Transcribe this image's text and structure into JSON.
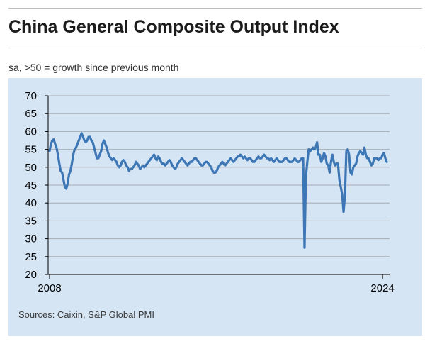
{
  "title": "China General Composite Output Index",
  "subtitle": "sa, >50 = growth since previous month",
  "source": "Sources: Caixin, S&P Global PMI",
  "colors": {
    "panel": "#d6e5f4",
    "line": "#3c76b5",
    "grid": "#a6acb3"
  },
  "chart_data": {
    "type": "line",
    "title": "China General Composite Output Index",
    "subtitle": "sa, >50 = growth since previous month",
    "xlabel": "",
    "ylabel": "",
    "x_tick_labels": [
      "2008",
      "2024"
    ],
    "ylim": [
      20,
      70
    ],
    "y_ticks": [
      20,
      25,
      30,
      35,
      40,
      45,
      50,
      55,
      60,
      65,
      70
    ],
    "grid": true,
    "x_start": "2008-01",
    "x_end": "2024-04",
    "series": [
      {
        "values": [
          54.5,
          56.5,
          57.5,
          57.8,
          56.5,
          55.5,
          53.5,
          51,
          49,
          48.5,
          46.5,
          44.5,
          44.0,
          45.5,
          48,
          49,
          51,
          53.5,
          55,
          55.5,
          56.5,
          57.5,
          58.5,
          59.5,
          58.5,
          57.5,
          57,
          57.5,
          58.5,
          58.5,
          57.5,
          57,
          55.5,
          54,
          52.5,
          52.5,
          53.5,
          54.5,
          56.5,
          57.5,
          56.5,
          55.5,
          54,
          53,
          52.5,
          52,
          52.5,
          52,
          51.5,
          50.5,
          50,
          50.5,
          51.5,
          52,
          51.5,
          50.5,
          50,
          49,
          49.5,
          49.5,
          50,
          50.5,
          51.5,
          51,
          50.5,
          49.5,
          50,
          50.5,
          50,
          50.5,
          51,
          51.5,
          52,
          52.5,
          53,
          53.5,
          52.5,
          52,
          53,
          52.5,
          51.5,
          51,
          51,
          50.5,
          51,
          51.5,
          52,
          51.5,
          50.5,
          50,
          49.5,
          50,
          51,
          51.5,
          52,
          52.5,
          52,
          51.5,
          51,
          50.5,
          51,
          51.5,
          51.5,
          52,
          52.5,
          52.5,
          52,
          51.5,
          51,
          50.5,
          50.5,
          51,
          51.5,
          51.5,
          51,
          50.5,
          50,
          49,
          48.5,
          48.5,
          49,
          50,
          50.5,
          51,
          51.5,
          51,
          50.5,
          51,
          51.5,
          52,
          52.5,
          52,
          51.5,
          52,
          52.5,
          53,
          53,
          53.5,
          53,
          52.5,
          53,
          52.5,
          52,
          52.5,
          52.5,
          52,
          51.5,
          51.5,
          52,
          52.5,
          53,
          52.5,
          52.5,
          53,
          53.5,
          53,
          52.5,
          52.5,
          52,
          52.5,
          52,
          51.5,
          52,
          52.5,
          52,
          51.5,
          51.5,
          51.5,
          52,
          52.5,
          52.5,
          52,
          51.5,
          51.5,
          51.5,
          52,
          52.5,
          52,
          51.5,
          51.5,
          52,
          52.5,
          52.5,
          27.5,
          47.5,
          51.5,
          55,
          54.5,
          55,
          55.5,
          55,
          55.5,
          57,
          53.5,
          53.5,
          51.5,
          52.5,
          54,
          53,
          51,
          50.5,
          48.5,
          51.5,
          53.5,
          51.5,
          50.5,
          51,
          51,
          46.5,
          44.5,
          42.5,
          37.5,
          42,
          54.5,
          55,
          53.5,
          48.5,
          48,
          50,
          50.5,
          51,
          53,
          54,
          54.5,
          54,
          53.5,
          55.5,
          53.5,
          52.5,
          52.5,
          51.5,
          50.5,
          51,
          52.5,
          52.5,
          52.5,
          52,
          52.5,
          52.5,
          53.5,
          54,
          52.5,
          51.5
        ]
      }
    ]
  }
}
